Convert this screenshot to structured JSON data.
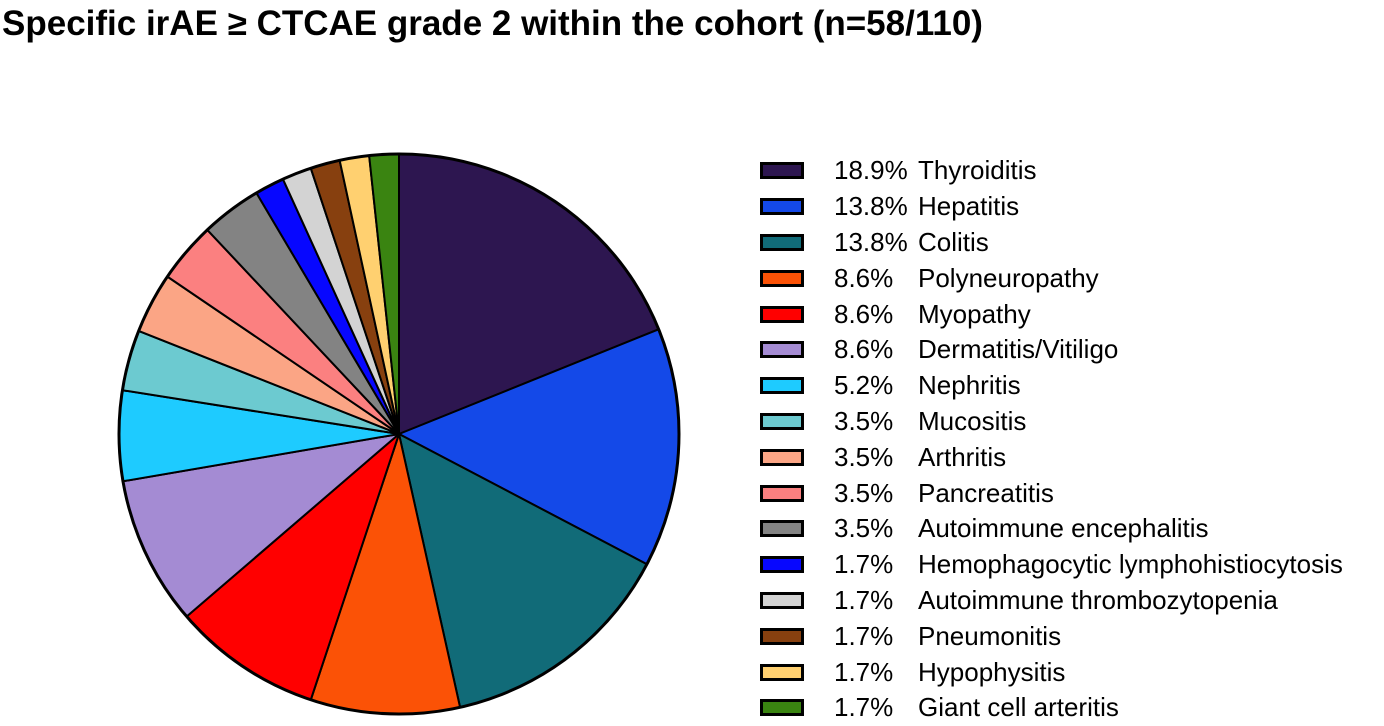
{
  "chart_data": {
    "type": "pie",
    "title": "Specific irAE ≥ CTCAE grade 2 within the cohort (n=58/110)",
    "legend_position": "right",
    "slices": [
      {
        "label": "Thyroiditis",
        "pct_label": "18.9%",
        "value": 18.9,
        "color": "#2d1650"
      },
      {
        "label": "Hepatitis",
        "pct_label": "13.8%",
        "value": 13.8,
        "color": "#1449e8"
      },
      {
        "label": "Colitis",
        "pct_label": "13.8%",
        "value": 13.8,
        "color": "#116b78"
      },
      {
        "label": "Polyneuropathy",
        "pct_label": "8.6%",
        "value": 8.6,
        "color": "#fb5206"
      },
      {
        "label": "Myopathy",
        "pct_label": "8.6%",
        "value": 8.6,
        "color": "#ff0000"
      },
      {
        "label": "Dermatitis/Vitiligo",
        "pct_label": "8.6%",
        "value": 8.6,
        "color": "#a48bd3"
      },
      {
        "label": "Nephritis",
        "pct_label": "5.2%",
        "value": 5.2,
        "color": "#1ecbff"
      },
      {
        "label": "Mucositis",
        "pct_label": "3.5%",
        "value": 3.5,
        "color": "#6ccad0"
      },
      {
        "label": "Arthritis",
        "pct_label": "3.5%",
        "value": 3.5,
        "color": "#fba585"
      },
      {
        "label": "Pancreatitis",
        "pct_label": "3.5%",
        "value": 3.5,
        "color": "#fb8080"
      },
      {
        "label": "Autoimmune encephalitis",
        "pct_label": "3.5%",
        "value": 3.5,
        "color": "#838383"
      },
      {
        "label": "Hemophagocytic lymphohistiocytosis",
        "pct_label": "1.7%",
        "value": 1.7,
        "color": "#0707ff"
      },
      {
        "label": "Autoimmune thrombozytopenia",
        "pct_label": "1.7%",
        "value": 1.7,
        "color": "#d3d3d3"
      },
      {
        "label": "Pneumonitis",
        "pct_label": "1.7%",
        "value": 1.7,
        "color": "#87400f"
      },
      {
        "label": "Hypophysitis",
        "pct_label": "1.7%",
        "value": 1.7,
        "color": "#ffd070"
      },
      {
        "label": "Giant cell arteritis",
        "pct_label": "1.7%",
        "value": 1.7,
        "color": "#3a8411"
      }
    ]
  }
}
